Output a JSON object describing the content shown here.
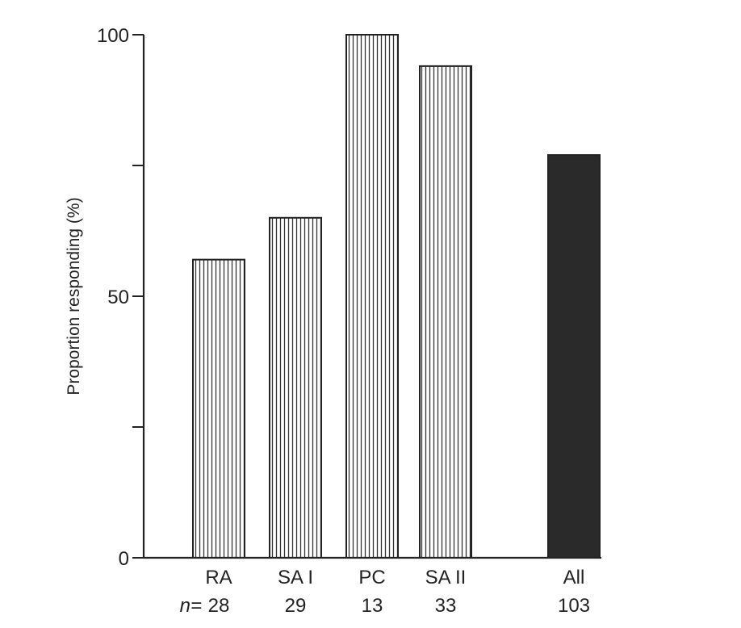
{
  "chart_data": {
    "type": "bar",
    "title": "",
    "xlabel": "",
    "ylabel": "Proportion responding (%)",
    "ylim": [
      0,
      100
    ],
    "yticks": [
      0,
      25,
      50,
      75,
      100
    ],
    "ytick_labels": [
      "0",
      "",
      "50",
      "",
      "100"
    ],
    "categories": [
      "RA",
      "SA I",
      "PC",
      "SA II",
      "All"
    ],
    "values": [
      57,
      65,
      100,
      94,
      77
    ],
    "n_prefix": "n=",
    "n_values": [
      "28",
      "29",
      "13",
      "33",
      "103"
    ],
    "fills": [
      "hatched",
      "hatched",
      "hatched",
      "hatched",
      "solid"
    ],
    "colors": {
      "axis": "#222222",
      "hatch": "#333333",
      "solid": "#2a2a2a",
      "background": "#ffffff"
    },
    "grid": false,
    "legend": "none"
  }
}
